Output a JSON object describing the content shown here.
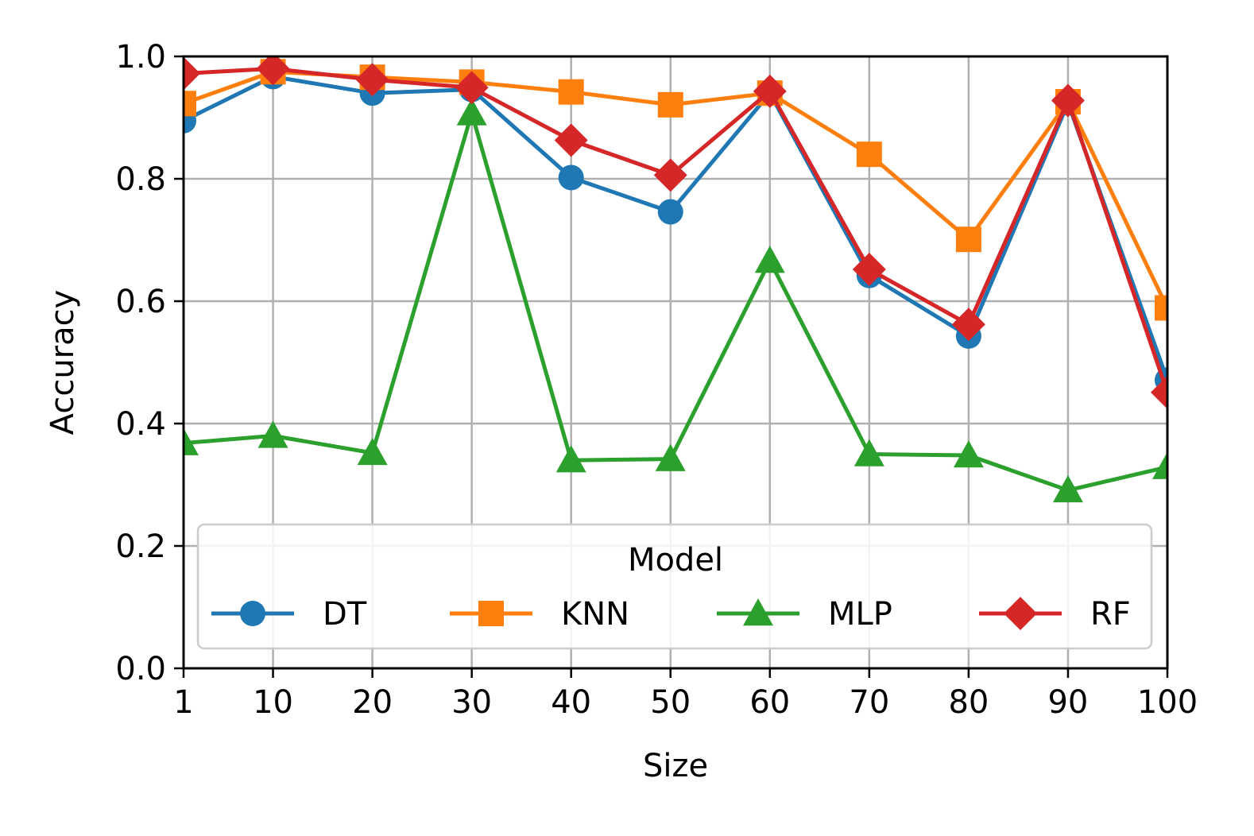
{
  "chart_data": {
    "type": "line",
    "title": "",
    "xlabel": "Size",
    "ylabel": "Accuracy",
    "x": [
      1,
      10,
      20,
      30,
      40,
      50,
      60,
      70,
      80,
      90,
      100
    ],
    "x_tick_labels": [
      "1",
      "10",
      "20",
      "30",
      "40",
      "50",
      "60",
      "70",
      "80",
      "90",
      "100"
    ],
    "y_ticks": [
      "0.0",
      "0.2",
      "0.4",
      "0.6",
      "0.8",
      "1.0"
    ],
    "xlim": [
      1,
      100
    ],
    "ylim": [
      0,
      1
    ],
    "grid": true,
    "legend": {
      "title": "Model",
      "position": "lower-center",
      "columns": 4
    },
    "series": [
      {
        "name": "DT",
        "color": "#1f77b4",
        "marker": "circle",
        "values": [
          0.895,
          0.967,
          0.94,
          0.946,
          0.802,
          0.746,
          0.94,
          0.642,
          0.543,
          0.924,
          0.471
        ]
      },
      {
        "name": "KNN",
        "color": "#ff7f0e",
        "marker": "square",
        "values": [
          0.923,
          0.975,
          0.966,
          0.958,
          0.942,
          0.921,
          0.94,
          0.84,
          0.701,
          0.926,
          0.589
        ]
      },
      {
        "name": "MLP",
        "color": "#2ca02c",
        "marker": "triangle",
        "values": [
          0.368,
          0.38,
          0.352,
          0.907,
          0.34,
          0.342,
          0.666,
          0.35,
          0.348,
          0.291,
          0.329
        ]
      },
      {
        "name": "RF",
        "color": "#d62728",
        "marker": "diamond",
        "values": [
          0.972,
          0.98,
          0.962,
          0.949,
          0.863,
          0.806,
          0.943,
          0.652,
          0.562,
          0.928,
          0.451
        ]
      }
    ]
  }
}
